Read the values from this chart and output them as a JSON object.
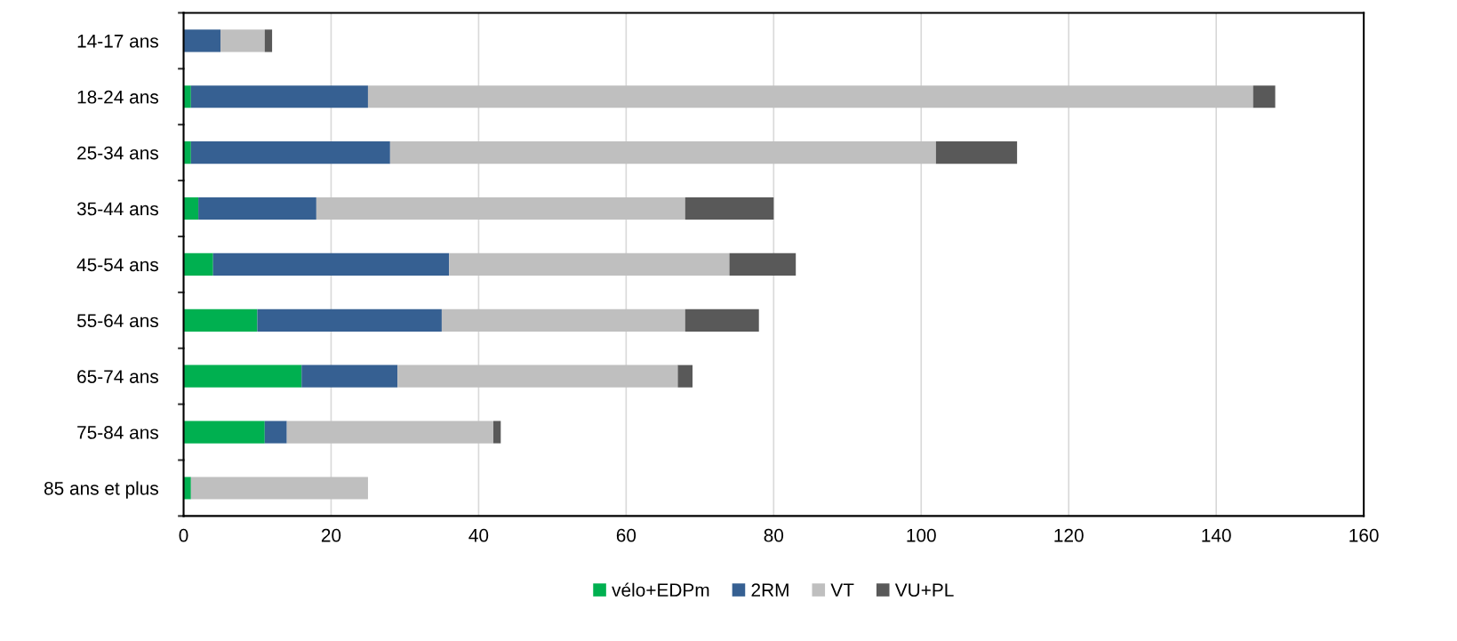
{
  "chart_data": {
    "type": "bar",
    "orientation": "horizontal",
    "stacked": true,
    "categories": [
      "14-17 ans",
      "18-24 ans",
      "25-34 ans",
      "35-44 ans",
      "45-54 ans",
      "55-64 ans",
      "65-74 ans",
      "75-84 ans",
      "85 ans et plus"
    ],
    "series": [
      {
        "name": "vélo+EDPm",
        "color": "#00b050",
        "values": [
          0,
          1,
          1,
          2,
          4,
          10,
          16,
          11,
          1
        ]
      },
      {
        "name": "2RM",
        "color": "#366092",
        "values": [
          5,
          24,
          27,
          16,
          32,
          25,
          13,
          3,
          0
        ]
      },
      {
        "name": "VT",
        "color": "#bfbfbf",
        "values": [
          6,
          120,
          74,
          50,
          38,
          33,
          38,
          28,
          24
        ]
      },
      {
        "name": "VU+PL",
        "color": "#595959",
        "values": [
          1,
          3,
          11,
          12,
          9,
          10,
          2,
          1,
          0
        ]
      }
    ],
    "xlim": [
      0,
      160
    ],
    "xticks": [
      0,
      20,
      40,
      60,
      80,
      100,
      120,
      140,
      160
    ],
    "grid": "x",
    "legend": "bottom"
  }
}
